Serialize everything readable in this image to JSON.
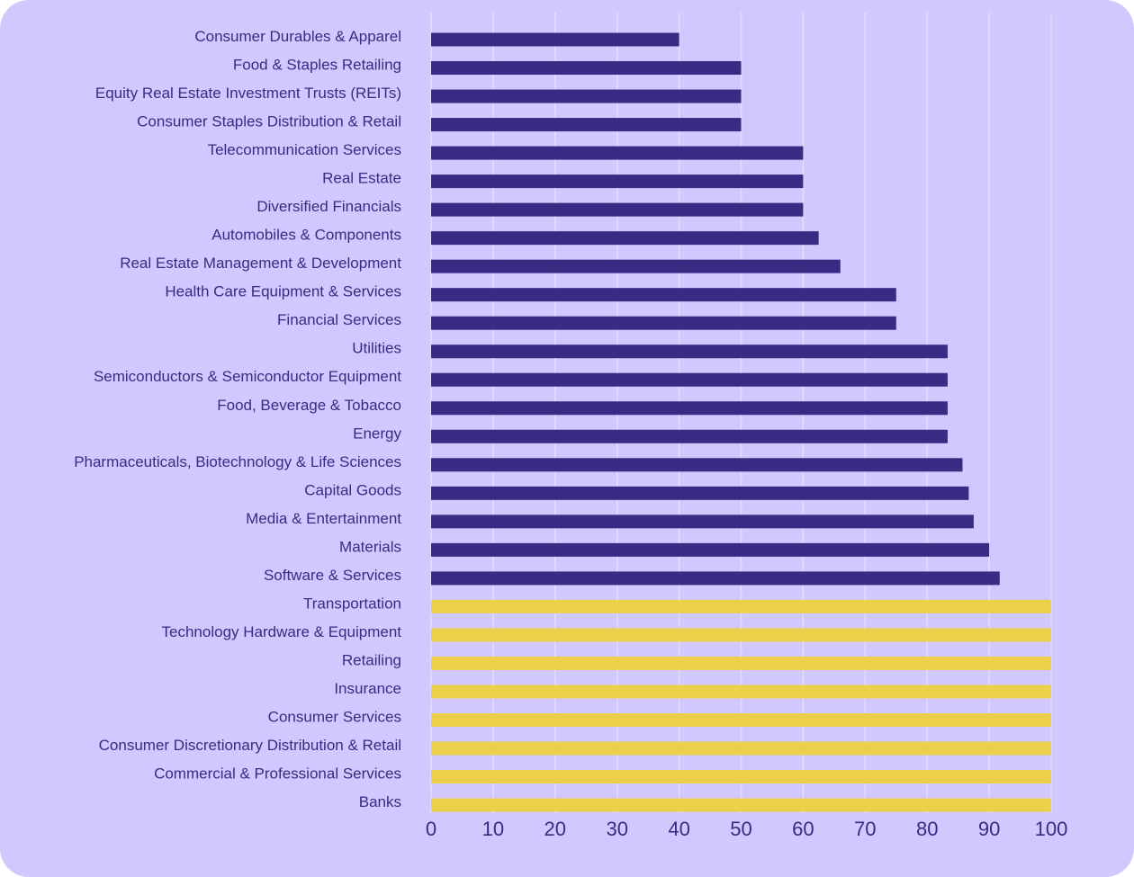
{
  "chart_data": {
    "type": "bar",
    "orientation": "horizontal",
    "title": "",
    "xlabel": "",
    "ylabel": "",
    "xlim": [
      0,
      100
    ],
    "xticks": [
      0,
      10,
      20,
      30,
      40,
      50,
      60,
      70,
      80,
      90,
      100
    ],
    "grid": "vertical",
    "colors": {
      "background": "#d0c8fe",
      "bar": "#3b2a84",
      "highlight": "#ecd04a",
      "text": "#3b2a84",
      "grid": "#e4defe"
    },
    "categories": [
      "Consumer Durables & Apparel",
      "Food & Staples Retailing",
      "Equity Real Estate Investment Trusts (REITs)",
      "Consumer Staples Distribution & Retail",
      "Telecommunication Services",
      "Real Estate",
      "Diversified Financials",
      "Automobiles & Components",
      "Real Estate Management & Development",
      "Health Care Equipment & Services",
      "Financial Services",
      "Utilities",
      "Semiconductors & Semiconductor Equipment",
      "Food, Beverage & Tobacco",
      "Energy",
      "Pharmaceuticals, Biotechnology & Life Sciences",
      "Capital Goods",
      "Media & Entertainment",
      "Materials",
      "Software & Services",
      "Transportation",
      "Technology Hardware & Equipment",
      "Retailing",
      "Insurance",
      "Consumer Services",
      "Consumer Discretionary Distribution & Retail",
      "Commercial & Professional Services",
      "Banks"
    ],
    "values": [
      40,
      50,
      50,
      50,
      60,
      60,
      60,
      62.5,
      66,
      75,
      75,
      83.3,
      83.3,
      83.3,
      83.3,
      85.7,
      86.7,
      87.5,
      90,
      91.7,
      100,
      100,
      100,
      100,
      100,
      100,
      100,
      100
    ]
  }
}
